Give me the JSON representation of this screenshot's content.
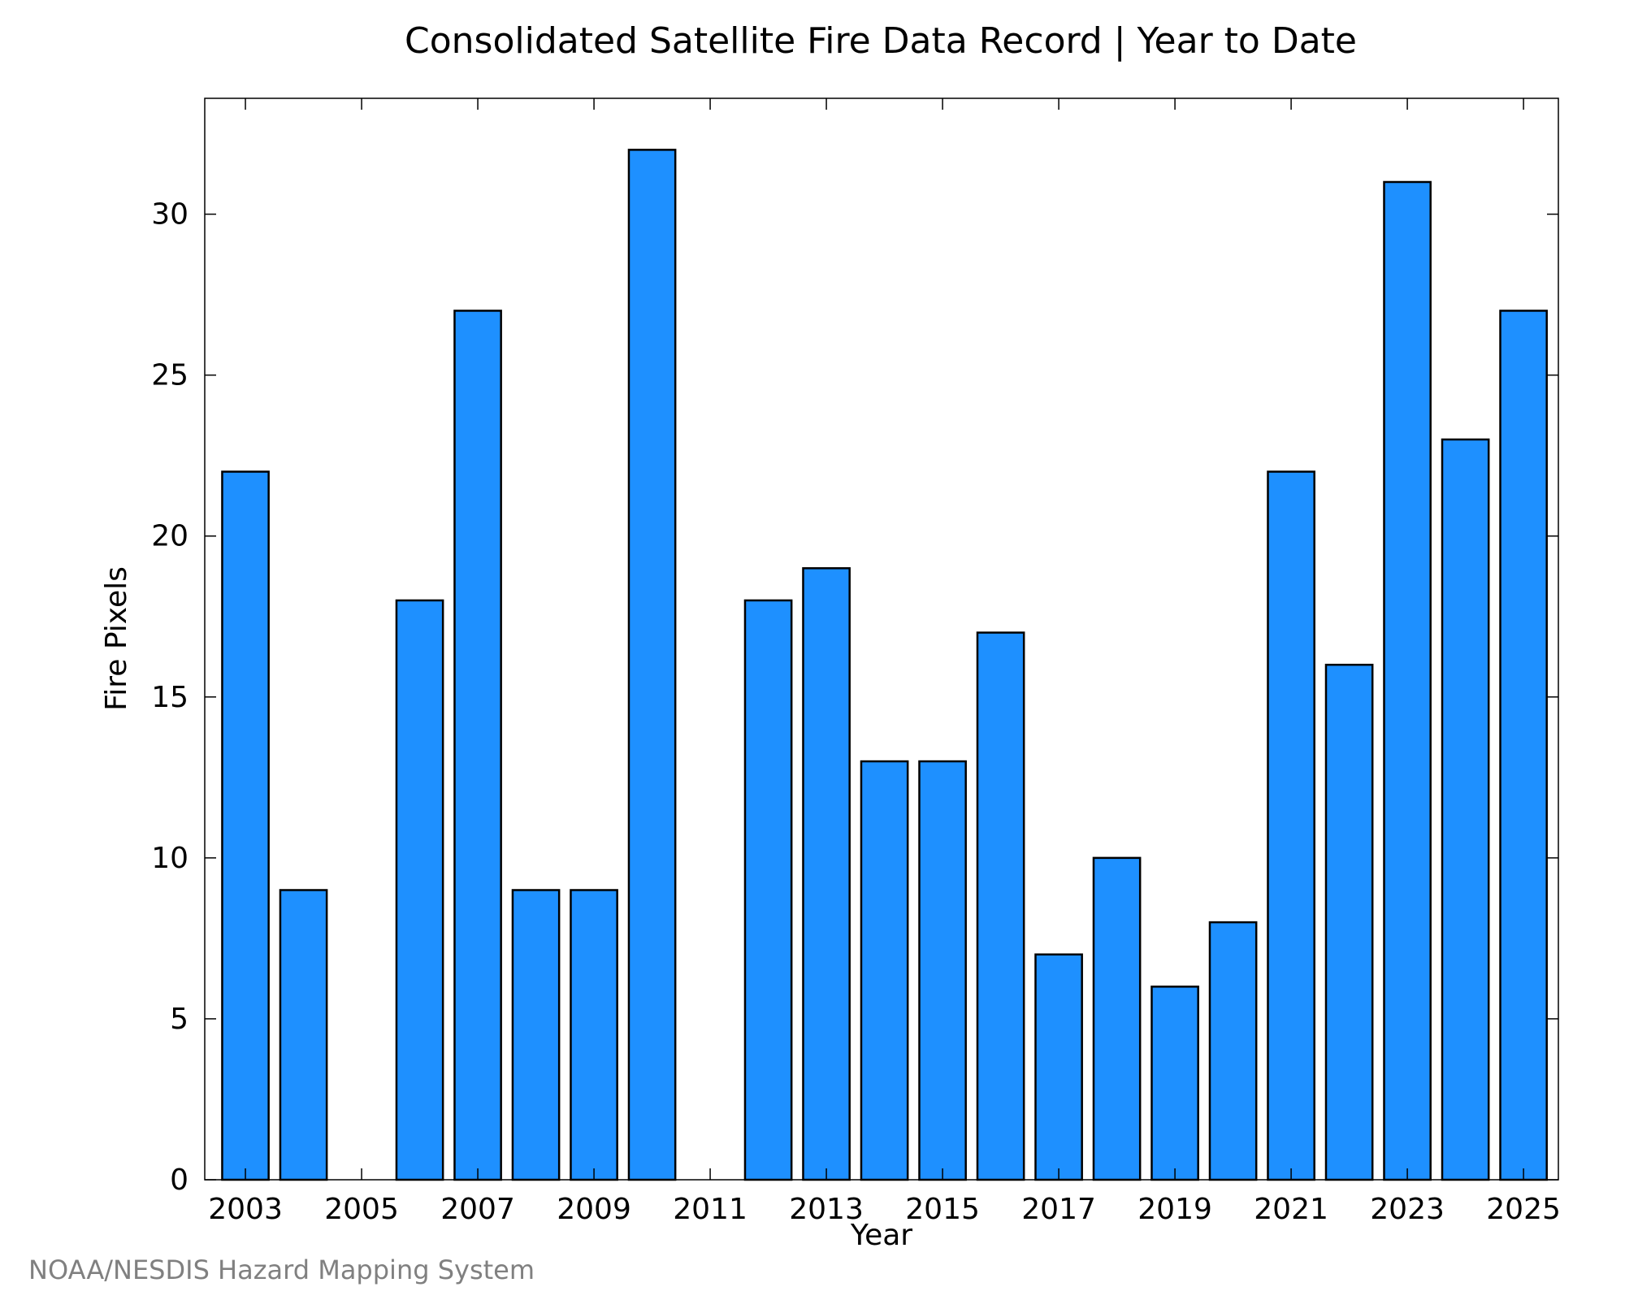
{
  "chart_data": {
    "type": "bar",
    "title": "Consolidated Satellite Fire Data Record | Year to Date",
    "xlabel": "Year",
    "ylabel": "Fire Pixels",
    "credit": "NOAA/NESDIS Hazard Mapping System",
    "categories": [
      2003,
      2004,
      2005,
      2006,
      2007,
      2008,
      2009,
      2010,
      2011,
      2012,
      2013,
      2014,
      2015,
      2016,
      2017,
      2018,
      2019,
      2020,
      2021,
      2022,
      2023,
      2024,
      2025
    ],
    "values": [
      22,
      9,
      0,
      18,
      27,
      9,
      9,
      32,
      0,
      18,
      19,
      13,
      13,
      17,
      7,
      10,
      6,
      8,
      22,
      16,
      31,
      23,
      27
    ],
    "x_ticks": [
      "2003",
      "2005",
      "2007",
      "2009",
      "2011",
      "2013",
      "2015",
      "2017",
      "2019",
      "2021",
      "2023",
      "2025"
    ],
    "y_ticks": [
      "0",
      "5",
      "10",
      "15",
      "20",
      "25",
      "30"
    ],
    "ylim": [
      0,
      33.6
    ],
    "grid": false,
    "bar_color": "#1E90FF",
    "bar_edge_color": "#000000"
  }
}
